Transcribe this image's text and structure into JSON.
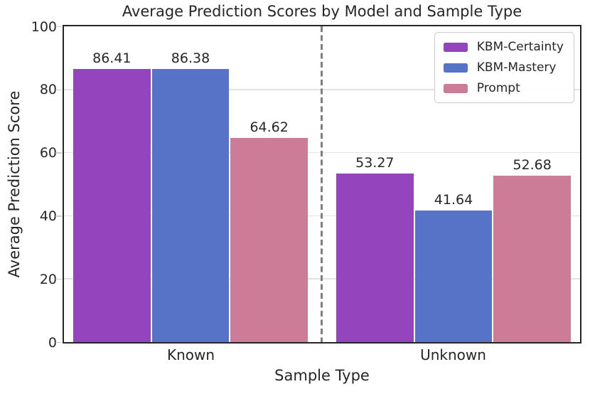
{
  "chart_data": {
    "type": "bar",
    "title": "Average Prediction Scores by Model and Sample Type",
    "xlabel": "Sample Type",
    "ylabel": "Average Prediction Score",
    "categories": [
      "Known",
      "Unknown"
    ],
    "series": [
      {
        "name": "KBM-Certainty",
        "color": "#9444BC",
        "values": [
          86.41,
          53.27
        ]
      },
      {
        "name": "KBM-Mastery",
        "color": "#5673C8",
        "values": [
          86.38,
          41.64
        ]
      },
      {
        "name": "Prompt",
        "color": "#CD7C97",
        "values": [
          64.62,
          52.68
        ]
      }
    ],
    "ylim": [
      0,
      100
    ],
    "yticks": [
      0,
      20,
      40,
      60,
      80,
      100
    ],
    "grid": true,
    "legend_position": "upper right",
    "separator": {
      "style": "dashed",
      "color": "#7f7f7f",
      "position": "between-groups"
    },
    "colors": {
      "spine": "#262626",
      "gridline": "#e3e3e3",
      "text": "#262626"
    }
  }
}
